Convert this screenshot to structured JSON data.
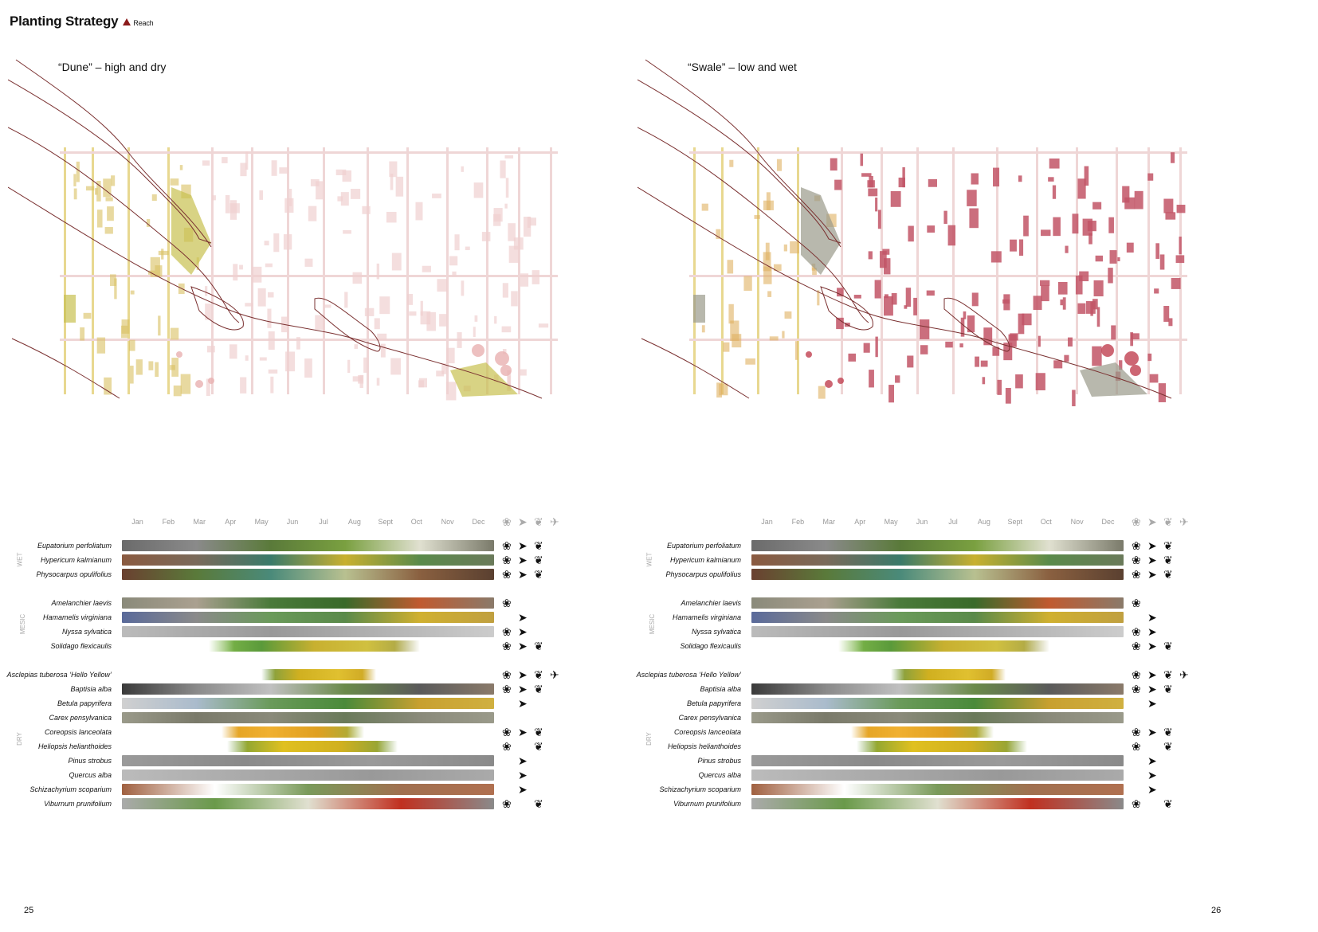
{
  "title": "Planting Strategy",
  "subtitle": "Reach",
  "maps": [
    {
      "label": "“Dune” – high and dry"
    },
    {
      "label": "“Swale” – low and wet"
    }
  ],
  "months": [
    "Jan",
    "Feb",
    "Mar",
    "Apr",
    "May",
    "Jun",
    "Jul",
    "Aug",
    "Sept",
    "Oct",
    "Nov",
    "Dec"
  ],
  "categories": [
    "WET",
    "MESIC",
    "DRY"
  ],
  "species": [
    {
      "name": "Eupatorium perfoliatum",
      "cat": "WET",
      "start": 0,
      "end": 12,
      "colors": [
        "#6b6b6b",
        "#8a8a8a",
        "#5a7a3a",
        "#7aa040",
        "#e0e0d0",
        "#7a7a6a"
      ],
      "pollinators": [
        "bee",
        "bird",
        "butterfly"
      ]
    },
    {
      "name": "Hypericum kalmianum",
      "cat": "WET",
      "start": 0,
      "end": 12,
      "colors": [
        "#8a5a40",
        "#7a6a5a",
        "#3a7a6a",
        "#c8b030",
        "#5a8a4a",
        "#6a7a5a"
      ],
      "pollinators": [
        "bee",
        "bird",
        "butterfly"
      ]
    },
    {
      "name": "Physocarpus opulifolius",
      "cat": "WET",
      "start": 0,
      "end": 12,
      "colors": [
        "#6a4030",
        "#5a7a3a",
        "#4a8a7a",
        "#b8c090",
        "#8a6040",
        "#5a4030"
      ],
      "pollinators": [
        "bee",
        "bird",
        "butterfly"
      ]
    },
    {
      "name": "Amelanchier laevis",
      "cat": "MESIC",
      "start": 0,
      "end": 12,
      "colors": [
        "#8a8a7a",
        "#aaa090",
        "#4a7a3a",
        "#3a6a2a",
        "#c05a30",
        "#8a7a6a"
      ],
      "pollinators": [
        "bee"
      ]
    },
    {
      "name": "Hamamelis virginiana",
      "cat": "MESIC",
      "start": 0,
      "end": 12,
      "colors": [
        "#5a6a9a",
        "#8a8a8a",
        "#6a9a5a",
        "#5a8a4a",
        "#d0b030",
        "#c0a040"
      ],
      "pollinators": [
        "bird"
      ]
    },
    {
      "name": "Nyssa sylvatica",
      "cat": "MESIC",
      "start": 0,
      "end": 12,
      "colors": [
        "#bbbbbb",
        "#aaaaaa",
        "#999999",
        "#aaaaaa",
        "#bbbbbb",
        "#cccccc"
      ],
      "pollinators": [
        "bee",
        "bird"
      ]
    },
    {
      "name": "Solidago flexicaulis",
      "cat": "MESIC",
      "start": 2.8,
      "end": 9.6,
      "colors": [
        "#8ac050",
        "#5a9a3a",
        "#c8b030",
        "#d0c040",
        "#9a9a4a"
      ],
      "pollinators": [
        "bee",
        "bird",
        "butterfly"
      ]
    },
    {
      "name": "Asclepias tuberosa ‘Hello Yellow’",
      "cat": "DRY",
      "start": 4.5,
      "end": 8.2,
      "colors": [
        "#6a9a4a",
        "#d0b020",
        "#e0c030",
        "#c8a020"
      ],
      "pollinators": [
        "bee",
        "bird",
        "butterfly",
        "hummingbird"
      ]
    },
    {
      "name": "Baptisia alba",
      "cat": "DRY",
      "start": 0,
      "end": 12,
      "colors": [
        "#3a3a3a",
        "#8a8a8a",
        "#c0c0c0",
        "#6a8a4a",
        "#5a5a5a",
        "#8a7a6a"
      ],
      "pollinators": [
        "bee",
        "bird",
        "butterfly"
      ]
    },
    {
      "name": "Betula papyrifera",
      "cat": "DRY",
      "start": 0,
      "end": 12,
      "colors": [
        "#d0d0d0",
        "#aabbcc",
        "#6a9a5a",
        "#4a8a3a",
        "#c8a030",
        "#d0b040"
      ],
      "pollinators": [
        "bird"
      ]
    },
    {
      "name": "Carex pensylvanica",
      "cat": "DRY",
      "start": 0,
      "end": 12,
      "colors": [
        "#9a9a8a",
        "#7a7a6a",
        "#8a8a7a",
        "#6a7a5a",
        "#8a8a7a",
        "#9a9a8a"
      ],
      "pollinators": []
    },
    {
      "name": "Coreopsis lanceolata",
      "cat": "DRY",
      "start": 3.2,
      "end": 7.8,
      "colors": [
        "#e0a020",
        "#f0b030",
        "#e0a020",
        "#9ab040"
      ],
      "pollinators": [
        "bee",
        "bird",
        "butterfly"
      ]
    },
    {
      "name": "Heliopsis helianthoides",
      "cat": "DRY",
      "start": 3.4,
      "end": 8.9,
      "colors": [
        "#6a9a3a",
        "#e0c020",
        "#d0b020",
        "#7aa040"
      ],
      "pollinators": [
        "bee",
        "butterfly"
      ]
    },
    {
      "name": "Pinus strobus",
      "cat": "DRY",
      "start": 0,
      "end": 12,
      "colors": [
        "#9a9a9a",
        "#8a8a8a",
        "#9a9a9a",
        "#8a8a8a"
      ],
      "pollinators": [
        "bird"
      ]
    },
    {
      "name": "Quercus alba",
      "cat": "DRY",
      "start": 0,
      "end": 12,
      "colors": [
        "#bbbbbb",
        "#aaaaaa",
        "#999999",
        "#aaaaaa"
      ],
      "pollinators": [
        "bird"
      ]
    },
    {
      "name": "Schizachyrium scoparium",
      "cat": "DRY",
      "start": 0,
      "end": 12,
      "colors": [
        "#a06040",
        "#ffffff",
        "#7a9a5a",
        "#a07050",
        "#b07050"
      ],
      "pollinators": [
        "bird"
      ]
    },
    {
      "name": "Viburnum prunifolium",
      "cat": "DRY",
      "start": 0,
      "end": 12,
      "colors": [
        "#aaaaaa",
        "#6a9a4a",
        "#e0e0d0",
        "#c03020",
        "#8a8a8a"
      ],
      "pollinators": [
        "bee",
        "butterfly"
      ]
    }
  ],
  "page_numbers": [
    "25",
    "26"
  ],
  "colors": {
    "accent": "#8b1a1a",
    "dune_fill": "#c8c050",
    "swale_fill": "#c05060",
    "road": "#7a3030"
  }
}
